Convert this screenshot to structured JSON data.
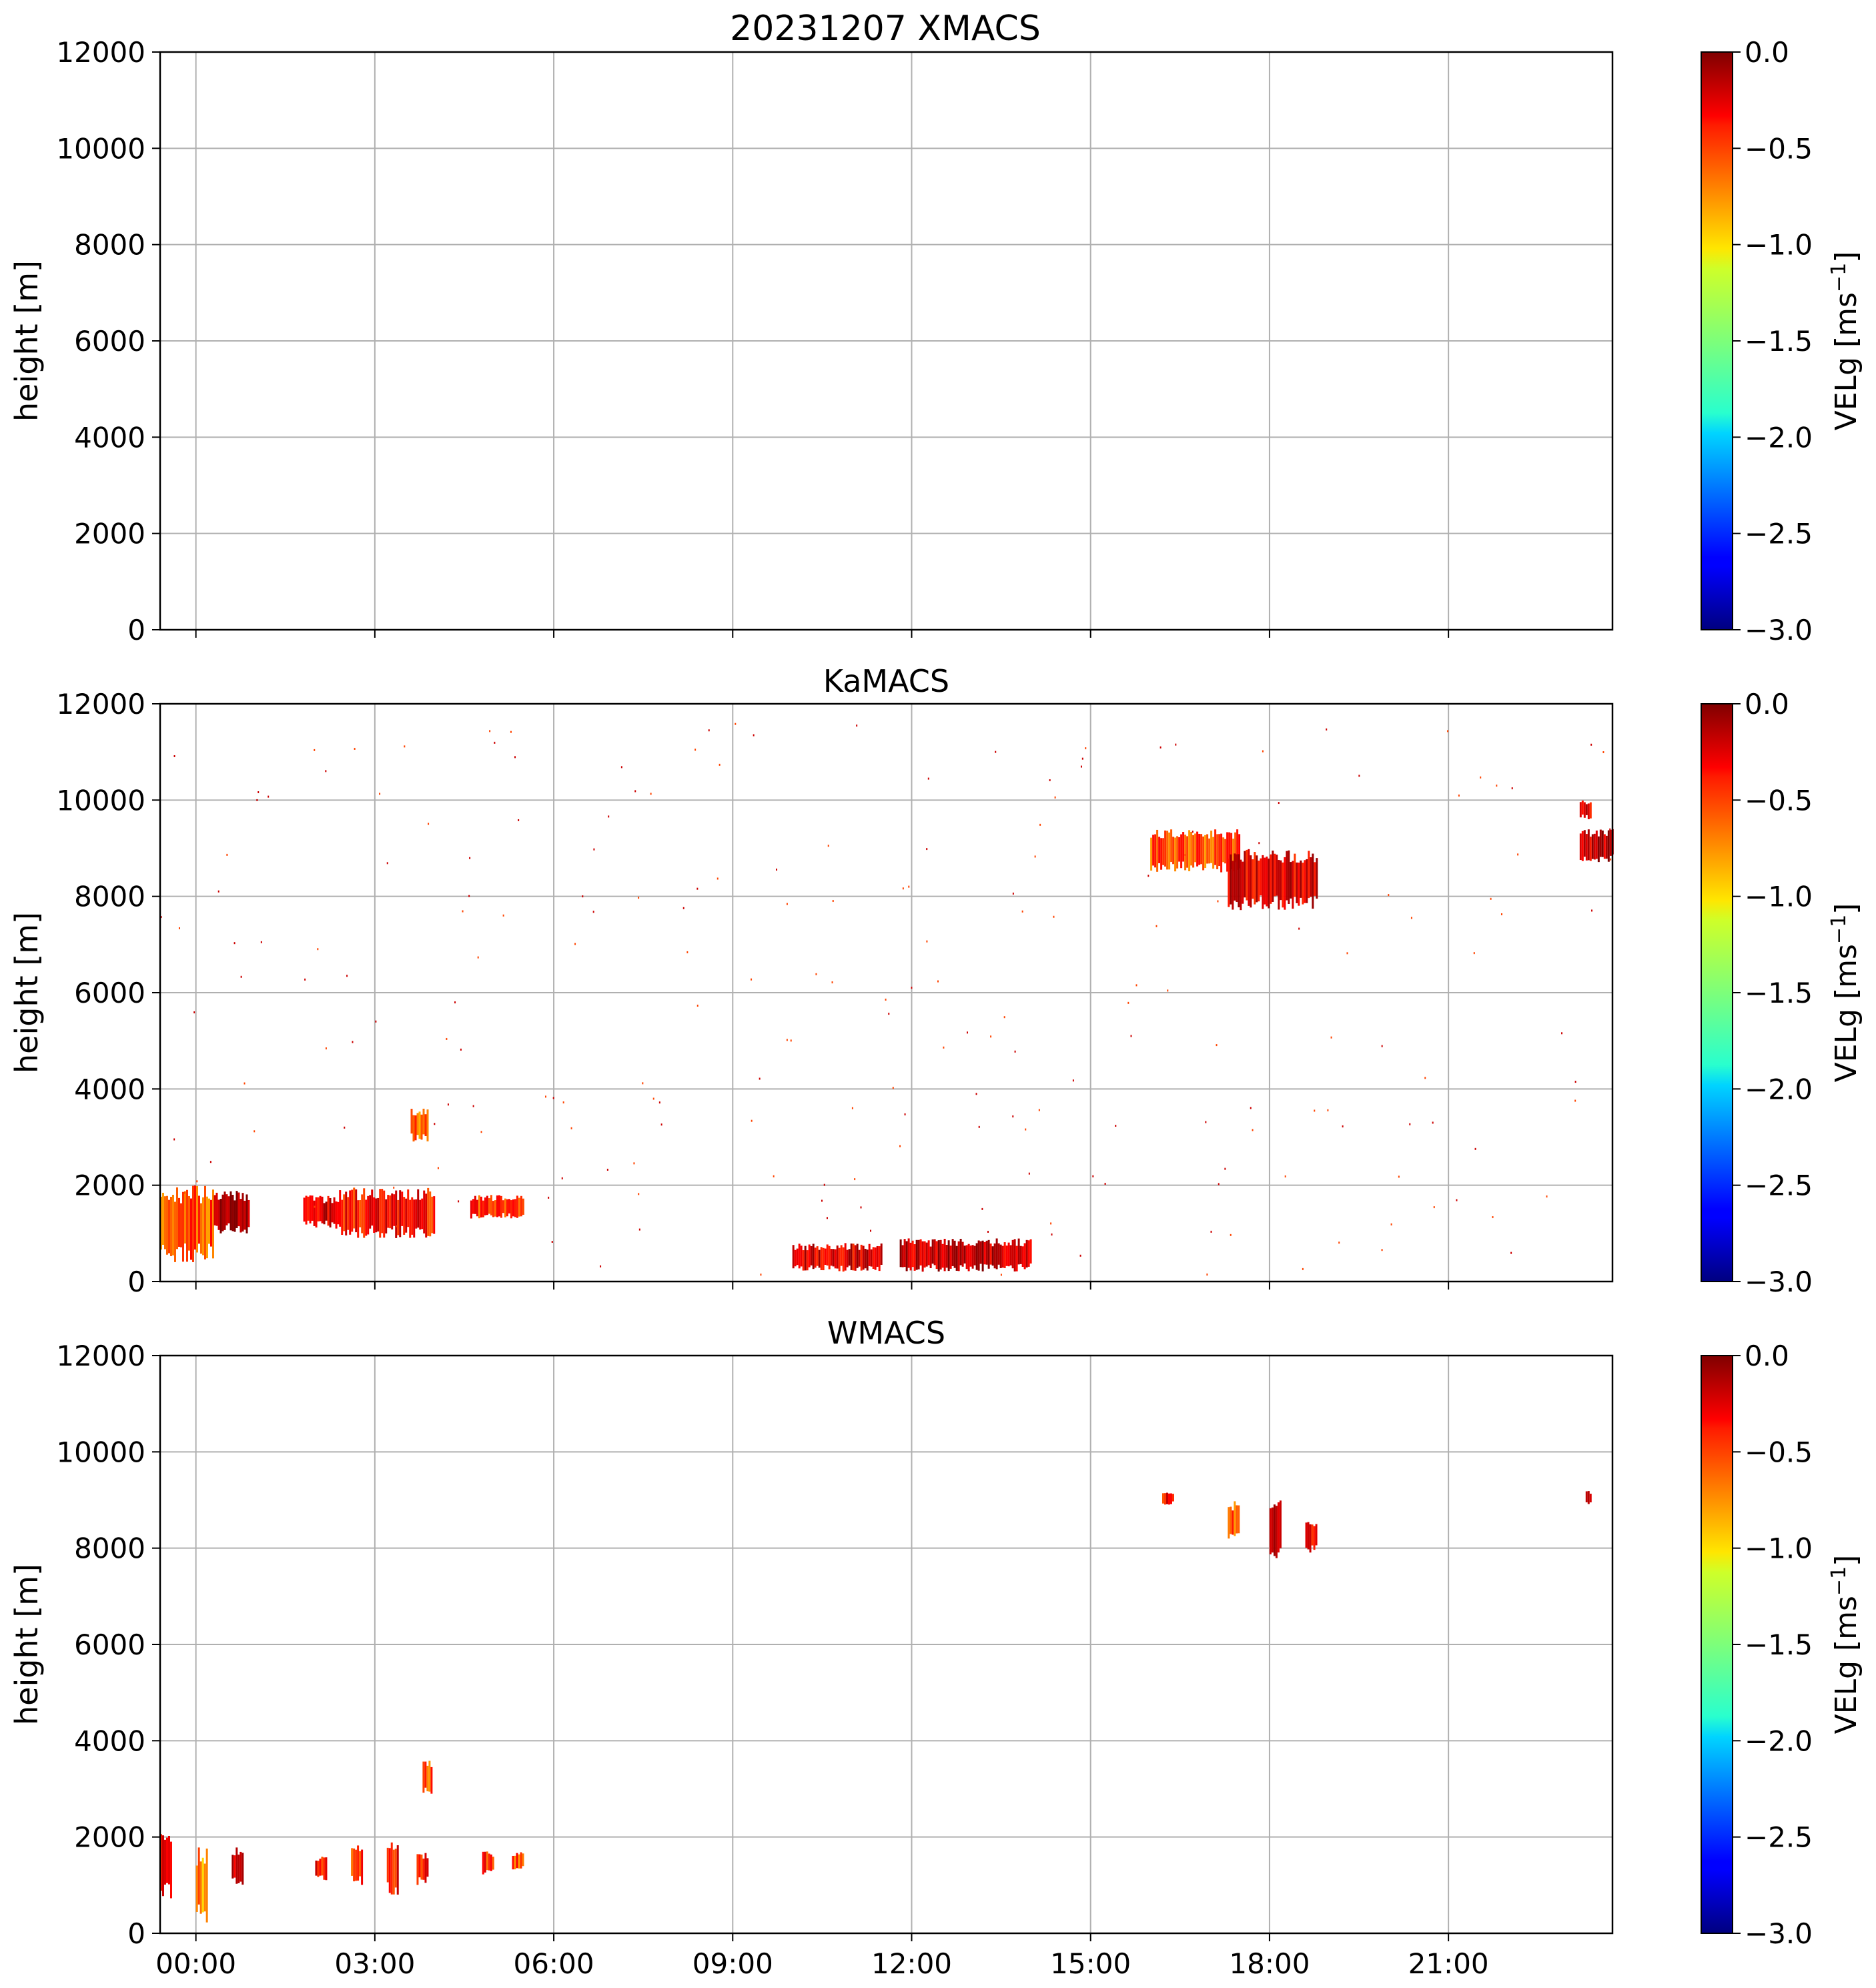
{
  "figure_title": "20231207 XMACS",
  "chart_data": [
    {
      "type": "heatmap",
      "title": "",
      "xlabel": "",
      "ylabel": "height [m]",
      "xlim": [
        -0.6,
        23.75
      ],
      "ylim": [
        0,
        12000
      ],
      "xtick_labels": [
        "00:00",
        "03:00",
        "06:00",
        "09:00",
        "12:00",
        "15:00",
        "18:00",
        "21:00"
      ],
      "xtick_values": [
        0,
        3,
        6,
        9,
        12,
        15,
        18,
        21
      ],
      "ytick_values": [
        0,
        2000,
        4000,
        6000,
        8000,
        10000,
        12000
      ],
      "ytick_labels": [
        "0",
        "2000",
        "4000",
        "6000",
        "8000",
        "10000",
        "12000"
      ],
      "show_xtick_labels": false,
      "grid": true,
      "colorbar": {
        "label": "VELg [ms",
        "label_exp": "−1",
        "label_end": "]",
        "vmin": -3.0,
        "vmax": 0.0,
        "ticks": [
          "0.0",
          "−0.5",
          "−1.0",
          "−1.5",
          "−2.0",
          "−2.5",
          "−3.0"
        ],
        "tick_values": [
          0,
          -0.5,
          -1.0,
          -1.5,
          -2.0,
          -2.5,
          -3.0
        ],
        "cmap": "jet"
      },
      "echo_regions": []
    },
    {
      "type": "heatmap",
      "title": "KaMACS",
      "xlabel": "",
      "ylabel": "height [m]",
      "xlim": [
        -0.6,
        23.75
      ],
      "ylim": [
        0,
        12000
      ],
      "xtick_labels": [
        "00:00",
        "03:00",
        "06:00",
        "09:00",
        "12:00",
        "15:00",
        "18:00",
        "21:00"
      ],
      "xtick_values": [
        0,
        3,
        6,
        9,
        12,
        15,
        18,
        21
      ],
      "ytick_values": [
        0,
        2000,
        4000,
        6000,
        8000,
        10000,
        12000
      ],
      "ytick_labels": [
        "0",
        "2000",
        "4000",
        "6000",
        "8000",
        "10000",
        "12000"
      ],
      "show_xtick_labels": false,
      "grid": true,
      "colorbar": {
        "label": "VELg [ms",
        "label_exp": "−1",
        "label_end": "]",
        "vmin": -3.0,
        "vmax": 0.0,
        "ticks": [
          "0.0",
          "−0.5",
          "−1.0",
          "−1.5",
          "−2.0",
          "−2.5",
          "−3.0"
        ],
        "tick_values": [
          0,
          -0.5,
          -1.0,
          -1.5,
          -2.0,
          -2.5,
          -3.0
        ],
        "cmap": "jet"
      },
      "echo_regions": [
        {
          "t0": -0.6,
          "t1": 0.3,
          "h0": 400,
          "h1": 2000,
          "vel": -0.6
        },
        {
          "t0": 0.3,
          "t1": 0.9,
          "h0": 1000,
          "h1": 1900,
          "vel": -0.1
        },
        {
          "t0": 1.8,
          "t1": 2.4,
          "h0": 1100,
          "h1": 1800,
          "vel": -0.3
        },
        {
          "t0": 2.4,
          "t1": 4.0,
          "h0": 900,
          "h1": 1950,
          "vel": -0.4
        },
        {
          "t0": 3.6,
          "t1": 3.9,
          "h0": 2900,
          "h1": 3600,
          "vel": -0.7
        },
        {
          "t0": 4.6,
          "t1": 5.5,
          "h0": 1300,
          "h1": 1800,
          "vel": -0.5
        },
        {
          "t0": 16.0,
          "t1": 17.5,
          "h0": 8500,
          "h1": 9400,
          "vel": -0.6
        },
        {
          "t0": 17.3,
          "t1": 18.8,
          "h0": 7700,
          "h1": 9000,
          "vel": -0.3
        },
        {
          "t0": 23.2,
          "t1": 23.75,
          "h0": 8700,
          "h1": 9400,
          "vel": -0.2
        },
        {
          "t0": 23.2,
          "t1": 23.4,
          "h0": 9600,
          "h1": 10000,
          "vel": -0.3
        },
        {
          "t0": 10.0,
          "t1": 11.5,
          "h0": 200,
          "h1": 800,
          "vel": -0.3
        },
        {
          "t0": 11.8,
          "t1": 14.0,
          "h0": 200,
          "h1": 900,
          "vel": -0.2
        }
      ]
    },
    {
      "type": "heatmap",
      "title": "WMACS",
      "xlabel": "",
      "ylabel": "height [m]",
      "xlim": [
        -0.6,
        23.75
      ],
      "ylim": [
        0,
        12000
      ],
      "xtick_labels": [
        "00:00",
        "03:00",
        "06:00",
        "09:00",
        "12:00",
        "15:00",
        "18:00",
        "21:00"
      ],
      "xtick_values": [
        0,
        3,
        6,
        9,
        12,
        15,
        18,
        21
      ],
      "ytick_values": [
        0,
        2000,
        4000,
        6000,
        8000,
        10000,
        12000
      ],
      "ytick_labels": [
        "0",
        "2000",
        "4000",
        "6000",
        "8000",
        "10000",
        "12000"
      ],
      "show_xtick_labels": true,
      "grid": true,
      "colorbar": {
        "label": "VELg [ms",
        "label_exp": "−1",
        "label_end": "]",
        "vmin": -3.0,
        "vmax": 0.0,
        "ticks": [
          "0.0",
          "−0.5",
          "−1.0",
          "−1.5",
          "−2.0",
          "−2.5",
          "−3.0"
        ],
        "tick_values": [
          0,
          -0.5,
          -1.0,
          -1.5,
          -2.0,
          -2.5,
          -3.0
        ],
        "cmap": "jet"
      },
      "echo_regions": [
        {
          "t0": -0.6,
          "t1": -0.4,
          "h0": 700,
          "h1": 2100,
          "vel": -0.4
        },
        {
          "t0": 0.0,
          "t1": 0.2,
          "h0": 200,
          "h1": 1800,
          "vel": -0.8
        },
        {
          "t0": 0.6,
          "t1": 0.8,
          "h0": 1000,
          "h1": 1800,
          "vel": -0.2
        },
        {
          "t0": 2.0,
          "t1": 2.2,
          "h0": 1100,
          "h1": 1600,
          "vel": -0.4
        },
        {
          "t0": 2.6,
          "t1": 2.8,
          "h0": 1000,
          "h1": 1900,
          "vel": -0.5
        },
        {
          "t0": 3.2,
          "t1": 3.4,
          "h0": 800,
          "h1": 1900,
          "vel": -0.4
        },
        {
          "t0": 3.7,
          "t1": 3.9,
          "h0": 1000,
          "h1": 1700,
          "vel": -0.5
        },
        {
          "t0": 3.8,
          "t1": 3.95,
          "h0": 2900,
          "h1": 3600,
          "vel": -0.6
        },
        {
          "t0": 4.8,
          "t1": 5.0,
          "h0": 1200,
          "h1": 1700,
          "vel": -0.5
        },
        {
          "t0": 5.3,
          "t1": 5.5,
          "h0": 1300,
          "h1": 1700,
          "vel": -0.6
        },
        {
          "t0": 16.2,
          "t1": 16.4,
          "h0": 8900,
          "h1": 9200,
          "vel": -0.4
        },
        {
          "t0": 17.3,
          "t1": 17.5,
          "h0": 8100,
          "h1": 9000,
          "vel": -0.6
        },
        {
          "t0": 18.0,
          "t1": 18.2,
          "h0": 7700,
          "h1": 9000,
          "vel": -0.2
        },
        {
          "t0": 18.6,
          "t1": 18.8,
          "h0": 7900,
          "h1": 8600,
          "vel": -0.3
        },
        {
          "t0": 23.3,
          "t1": 23.4,
          "h0": 8900,
          "h1": 9200,
          "vel": -0.3
        }
      ]
    }
  ]
}
